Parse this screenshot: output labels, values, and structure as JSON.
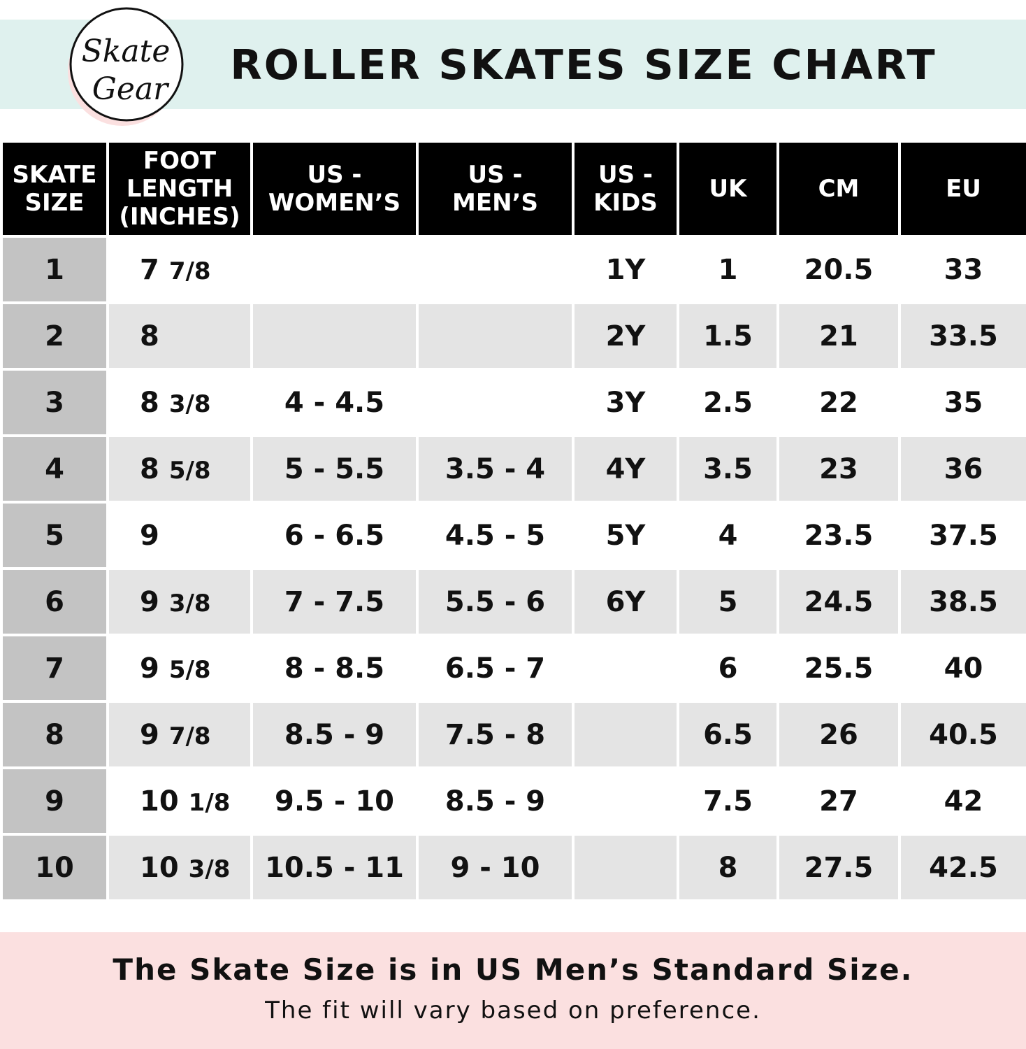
{
  "brand": {
    "logo_text_1": "Skate",
    "logo_text_2": "Gear"
  },
  "title": "ROLLER SKATES SIZE CHART",
  "colors": {
    "header_band": "#dff1ee",
    "footer_band": "#fbe0e0",
    "table_header": "#000000",
    "skate_size_col": "#c3c3c3",
    "row_alt": "#e4e4e4"
  },
  "chart_data": {
    "type": "table",
    "title": "ROLLER SKATES SIZE CHART",
    "columns": [
      "SKATE\nSIZE",
      "FOOT\nLENGTH\n(INCHES)",
      "US -\nWOMEN’S",
      "US -\nMEN’S",
      "US -\nKIDS",
      "UK",
      "CM",
      "EU"
    ],
    "rows": [
      {
        "skate": "1",
        "foot_whole": "7",
        "foot_frac": "7/8",
        "women": "",
        "men": "",
        "kids": "1Y",
        "uk": "1",
        "cm": "20.5",
        "eu": "33"
      },
      {
        "skate": "2",
        "foot_whole": "8",
        "foot_frac": "",
        "women": "",
        "men": "",
        "kids": "2Y",
        "uk": "1.5",
        "cm": "21",
        "eu": "33.5"
      },
      {
        "skate": "3",
        "foot_whole": "8",
        "foot_frac": "3/8",
        "women": "4 - 4.5",
        "men": "",
        "kids": "3Y",
        "uk": "2.5",
        "cm": "22",
        "eu": "35"
      },
      {
        "skate": "4",
        "foot_whole": "8",
        "foot_frac": "5/8",
        "women": "5 - 5.5",
        "men": "3.5 - 4",
        "kids": "4Y",
        "uk": "3.5",
        "cm": "23",
        "eu": "36"
      },
      {
        "skate": "5",
        "foot_whole": "9",
        "foot_frac": "",
        "women": "6 - 6.5",
        "men": "4.5 - 5",
        "kids": "5Y",
        "uk": "4",
        "cm": "23.5",
        "eu": "37.5"
      },
      {
        "skate": "6",
        "foot_whole": "9",
        "foot_frac": "3/8",
        "women": "7 - 7.5",
        "men": "5.5 - 6",
        "kids": "6Y",
        "uk": "5",
        "cm": "24.5",
        "eu": "38.5"
      },
      {
        "skate": "7",
        "foot_whole": "9",
        "foot_frac": "5/8",
        "women": "8 - 8.5",
        "men": "6.5 - 7",
        "kids": "",
        "uk": "6",
        "cm": "25.5",
        "eu": "40"
      },
      {
        "skate": "8",
        "foot_whole": "9",
        "foot_frac": "7/8",
        "women": "8.5 - 9",
        "men": "7.5 - 8",
        "kids": "",
        "uk": "6.5",
        "cm": "26",
        "eu": "40.5"
      },
      {
        "skate": "9",
        "foot_whole": "10",
        "foot_frac": "1/8",
        "women": "9.5 - 10",
        "men": "8.5 - 9",
        "kids": "",
        "uk": "7.5",
        "cm": "27",
        "eu": "42"
      },
      {
        "skate": "10",
        "foot_whole": "10",
        "foot_frac": "3/8",
        "women": "10.5 - 11",
        "men": "9 - 10",
        "kids": "",
        "uk": "8",
        "cm": "27.5",
        "eu": "42.5"
      }
    ]
  },
  "footer": {
    "main": "The Skate Size is in US Men’s Standard Size.",
    "sub": "The fit will vary based on preference."
  }
}
